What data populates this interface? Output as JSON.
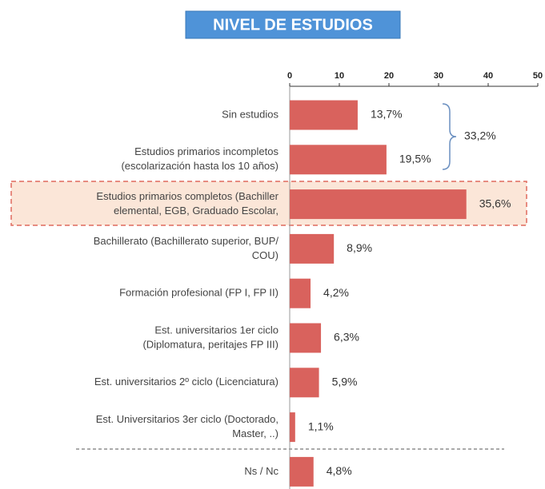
{
  "chart_data": {
    "type": "bar",
    "orientation": "horizontal",
    "title": "NIVEL DE ESTUDIOS",
    "categories": [
      [
        "Sin estudios"
      ],
      [
        "Estudios primarios incompletos",
        "(escolarización hasta los 10 años)"
      ],
      [
        "Estudios primarios completos (Bachiller",
        "elemental, EGB, Graduado Escolar,"
      ],
      [
        "Bachillerato (Bachillerato superior, BUP/",
        "COU)"
      ],
      [
        "Formación profesional (FP I, FP II)"
      ],
      [
        "Est. universitarios 1er ciclo",
        "(Diplomatura, peritajes FP III)"
      ],
      [
        "Est. universitarios 2º ciclo (Licenciatura)"
      ],
      [
        "Est. Universitarios 3er ciclo (Doctorado,",
        "Master, ..)"
      ],
      [
        "Ns / Nc"
      ]
    ],
    "values": [
      13.7,
      19.5,
      35.6,
      8.9,
      4.2,
      6.3,
      5.9,
      1.1,
      4.8
    ],
    "value_labels": [
      "13,7%",
      "19,5%",
      "35,6%",
      "8,9%",
      "4,2%",
      "6,3%",
      "5,9%",
      "1,1%",
      "4,8%"
    ],
    "color": "#d9625d",
    "xlim": [
      0,
      50
    ],
    "xticks": [
      0,
      10,
      20,
      30,
      40,
      50
    ],
    "annotation": "33,2%"
  }
}
